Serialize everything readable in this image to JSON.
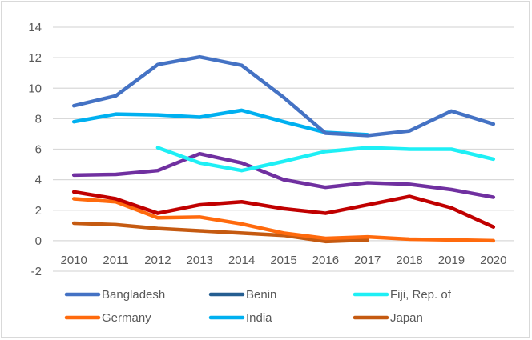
{
  "chart_data": {
    "type": "line",
    "title": "",
    "xlabel": "",
    "ylabel": "",
    "x": [
      "2010",
      "2011",
      "2012",
      "2013",
      "2014",
      "2015",
      "2016",
      "2017",
      "2018",
      "2019",
      "2020"
    ],
    "ylim": [
      -2,
      14
    ],
    "yticks": [
      14,
      12,
      10,
      8,
      6,
      4,
      2,
      0,
      -2
    ],
    "grid": true,
    "legend_position": "bottom",
    "series": [
      {
        "name": "Bangladesh",
        "color": "#4472C4",
        "in_legend": true,
        "values": [
          8.85,
          9.5,
          11.55,
          12.05,
          11.5,
          9.4,
          7.05,
          6.9,
          7.2,
          8.5,
          7.65
        ]
      },
      {
        "name": "Benin",
        "color": "#255E91",
        "in_legend": true,
        "values": [
          null,
          null,
          null,
          null,
          null,
          null,
          null,
          null,
          null,
          null,
          null
        ]
      },
      {
        "name": "Fiji, Rep. of",
        "color": "#1EEFF5",
        "in_legend": true,
        "values": [
          null,
          null,
          6.1,
          5.1,
          4.6,
          5.2,
          5.85,
          6.1,
          6.0,
          6.0,
          5.35
        ]
      },
      {
        "name": "Germany",
        "color": "#FF6A0D",
        "in_legend": true,
        "values": [
          2.75,
          2.55,
          1.5,
          1.55,
          1.1,
          0.5,
          0.15,
          0.25,
          0.1,
          0.05,
          0.0
        ]
      },
      {
        "name": "India",
        "color": "#00B0F0",
        "in_legend": true,
        "values": [
          7.8,
          8.3,
          8.25,
          8.1,
          8.55,
          7.8,
          7.1,
          6.95,
          null,
          null,
          null
        ]
      },
      {
        "name": "Japan",
        "color": "#C55A11",
        "in_legend": true,
        "values": [
          1.15,
          1.05,
          0.8,
          0.65,
          0.5,
          0.35,
          -0.05,
          0.05,
          null,
          null,
          null
        ]
      },
      {
        "name": "",
        "color": "#7030A0",
        "in_legend": false,
        "values": [
          4.3,
          4.35,
          4.6,
          5.7,
          5.1,
          4.0,
          3.5,
          3.8,
          3.7,
          3.35,
          2.85
        ]
      },
      {
        "name": "",
        "color": "#C00000",
        "in_legend": false,
        "values": [
          3.2,
          2.75,
          1.8,
          2.35,
          2.55,
          2.1,
          1.8,
          2.35,
          2.9,
          2.15,
          0.9
        ]
      }
    ],
    "legend_entries": [
      "Bangladesh",
      "Benin",
      "Fiji, Rep. of",
      "Germany",
      "India",
      "Japan"
    ]
  }
}
